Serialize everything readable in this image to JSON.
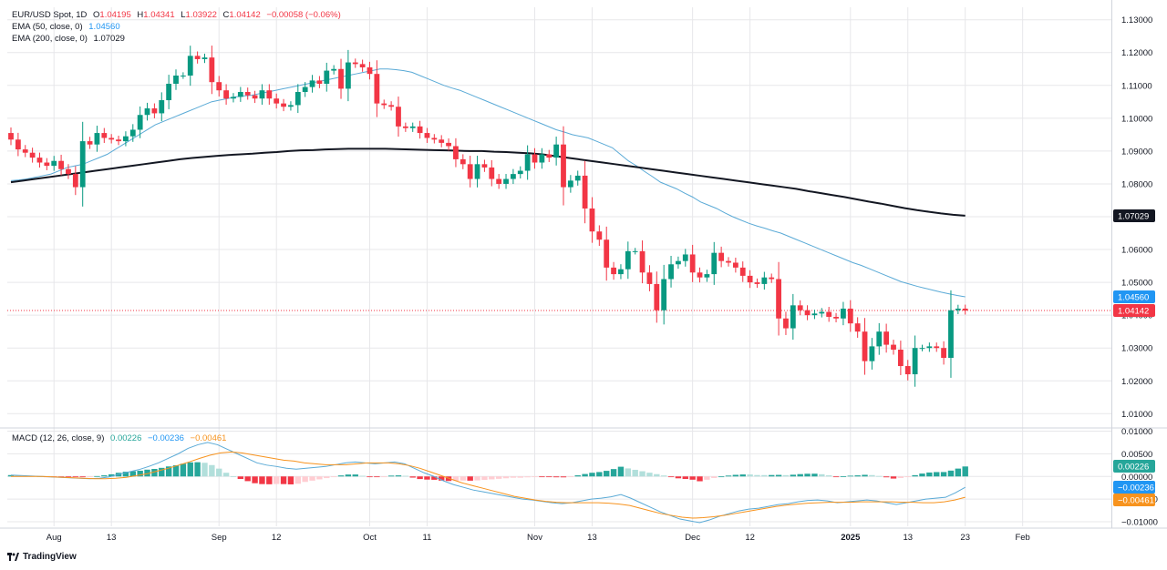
{
  "colors": {
    "up": "#089981",
    "down": "#f23645",
    "ema50": "#5aaad6",
    "ema200": "#131722",
    "macd_line": "#5aaad6",
    "signal_line": "#f7931e",
    "hist_up_strong": "#26a69a",
    "hist_up_weak": "#b2dfdb",
    "hist_down_strong": "#f23645",
    "hist_down_weak": "#ffcdd2",
    "grid": "#e7e7ea",
    "text": "#131722",
    "price_red": "#f23645"
  },
  "legend": {
    "row1": {
      "symbol": "EUR/USD Spot, 1D",
      "o_label": "O",
      "o": "1.04195",
      "h_label": "H",
      "h": "1.04341",
      "l_label": "L",
      "l": "1.03922",
      "c_label": "C",
      "c": "1.04142",
      "change": "−0.00058 (−0.06%)"
    },
    "row2": {
      "label": "EMA (50, close, 0)",
      "value": "1.04560"
    },
    "row3": {
      "label": "EMA (200, close, 0)",
      "value": "1.07029"
    },
    "macd": {
      "label": "MACD (12, 26, close, 9)",
      "hist": "0.00226",
      "macd": "−0.00236",
      "signal": "−0.00461"
    }
  },
  "branding": {
    "name": "TradingView"
  },
  "chart_data": {
    "type": "candlestick",
    "title": "EUR/USD Spot, 1D",
    "price_axis": {
      "ticks": [
        "1.13000",
        "1.12000",
        "1.11000",
        "1.10000",
        "1.09000",
        "1.08000",
        "1.07000",
        "1.06000",
        "1.05000",
        "1.04000",
        "1.03000",
        "1.02000",
        "1.01000"
      ],
      "range": [
        1.0062,
        1.1338
      ]
    },
    "macd_axis": {
      "ticks": [
        "0.01000",
        "0.00500",
        "0.00000",
        "−0.00500",
        "−0.01000"
      ],
      "range": [
        -0.011,
        0.0105
      ]
    },
    "x_axis": {
      "ticks": [
        {
          "label": "Aug",
          "idx": 6,
          "bold": false
        },
        {
          "label": "13",
          "idx": 14,
          "bold": false
        },
        {
          "label": "Sep",
          "idx": 29,
          "bold": false
        },
        {
          "label": "12",
          "idx": 37,
          "bold": false
        },
        {
          "label": "Oct",
          "idx": 50,
          "bold": false
        },
        {
          "label": "11",
          "idx": 58,
          "bold": false
        },
        {
          "label": "Nov",
          "idx": 73,
          "bold": false
        },
        {
          "label": "13",
          "idx": 81,
          "bold": false
        },
        {
          "label": "Dec",
          "idx": 95,
          "bold": false
        },
        {
          "label": "12",
          "idx": 103,
          "bold": false
        },
        {
          "label": "2025",
          "idx": 117,
          "bold": true
        },
        {
          "label": "13",
          "idx": 125,
          "bold": false
        },
        {
          "label": "23",
          "idx": 133,
          "bold": false
        },
        {
          "label": "Feb",
          "idx": 141,
          "bold": false
        }
      ]
    },
    "price_labels": [
      {
        "name": "EMA 200",
        "value": "1.07029",
        "price": 1.07029,
        "bg": "#131722"
      },
      {
        "name": "EMA 50",
        "value": "1.04560",
        "price": 1.0456,
        "bg": "#2196f3"
      },
      {
        "name": "Last",
        "value": "1.04142",
        "price": 1.04142,
        "bg": "#f23645"
      }
    ],
    "macd_labels": [
      {
        "name": "Histogram",
        "value": "0.00226",
        "v": 0.00226,
        "bg": "#26a69a"
      },
      {
        "name": "MACD",
        "value": "−0.00236",
        "v": -0.00236,
        "bg": "#2196f3"
      },
      {
        "name": "Signal",
        "value": "−0.00461",
        "v": -0.00461,
        "bg": "#f7931e"
      }
    ],
    "last_price": 1.04142,
    "closes": [
      1.0935,
      1.0905,
      1.0895,
      1.088,
      1.0865,
      1.0855,
      1.087,
      1.0845,
      1.083,
      1.079,
      1.093,
      1.092,
      1.0955,
      1.094,
      1.0935,
      1.093,
      1.0945,
      1.0965,
      1.101,
      1.103,
      1.1015,
      1.1055,
      1.1105,
      1.113,
      1.113,
      1.119,
      1.118,
      1.1185,
      1.111,
      1.1085,
      1.106,
      1.1065,
      1.108,
      1.107,
      1.106,
      1.1085,
      1.106,
      1.1045,
      1.1035,
      1.104,
      1.108,
      1.1095,
      1.1115,
      1.1105,
      1.1145,
      1.115,
      1.109,
      1.117,
      1.1165,
      1.1155,
      1.1135,
      1.1045,
      1.104,
      1.1035,
      1.0975,
      1.097,
      1.0975,
      1.0955,
      1.094,
      1.0935,
      1.0925,
      1.0915,
      1.0875,
      1.086,
      1.0815,
      1.086,
      1.085,
      1.0815,
      1.08,
      1.0815,
      1.083,
      1.084,
      1.089,
      1.0865,
      1.089,
      1.088,
      1.092,
      1.079,
      1.081,
      1.0825,
      1.0725,
      1.0655,
      1.063,
      1.0545,
      1.0525,
      1.054,
      1.0595,
      1.0595,
      1.053,
      1.0495,
      1.0415,
      1.051,
      1.0555,
      1.0565,
      1.0585,
      1.053,
      1.0515,
      1.0525,
      1.059,
      1.0565,
      1.056,
      1.0545,
      1.052,
      1.05,
      1.0495,
      1.0515,
      1.051,
      1.039,
      1.036,
      1.043,
      1.0415,
      1.04,
      1.0405,
      1.041,
      1.0395,
      1.039,
      1.042,
      1.0375,
      1.035,
      1.026,
      1.0305,
      1.035,
      1.031,
      1.0295,
      1.0245,
      1.022,
      1.03,
      1.03,
      1.0305,
      1.03,
      1.027,
      1.0415,
      1.042,
      1.0414
    ],
    "ema50": [
      1.081,
      1.0812,
      1.0815,
      1.082,
      1.0825,
      1.083,
      1.084,
      1.085,
      1.0855,
      1.086,
      1.087,
      1.088,
      1.089,
      1.0905,
      1.092,
      1.0935,
      1.095,
      1.0965,
      1.098,
      1.099,
      1.1,
      1.101,
      1.102,
      1.103,
      1.104,
      1.105,
      1.1055,
      1.106,
      1.1065,
      1.1068,
      1.107,
      1.1075,
      1.108,
      1.1085,
      1.109,
      1.1095,
      1.11,
      1.1105,
      1.111,
      1.1115,
      1.112,
      1.1125,
      1.113,
      1.1135,
      1.114,
      1.1145,
      1.115,
      1.115,
      1.1148,
      1.1145,
      1.114,
      1.113,
      1.112,
      1.111,
      1.11,
      1.1092,
      1.1085,
      1.1075,
      1.1065,
      1.1055,
      1.1045,
      1.1035,
      1.1025,
      1.1015,
      1.1005,
      1.0995,
      1.0985,
      1.0975,
      1.0965,
      1.0958,
      1.095,
      1.0945,
      1.094,
      1.093,
      1.092,
      1.091,
      1.089,
      1.087,
      1.0855,
      1.0838,
      1.0822,
      1.0805,
      1.0795,
      1.0785,
      1.0772,
      1.076,
      1.0745,
      1.0735,
      1.0725,
      1.0712,
      1.07,
      1.069,
      1.068,
      1.0672,
      1.0665,
      1.0657,
      1.065,
      1.064,
      1.063,
      1.062,
      1.061,
      1.06,
      1.059,
      1.058,
      1.057,
      1.056,
      1.0552,
      1.0542,
      1.0532,
      1.0522,
      1.0512,
      1.0502,
      1.0495,
      1.0488,
      1.0482,
      1.0476,
      1.047,
      1.0465,
      1.046,
      1.0456
    ],
    "ema50_start": 0,
    "ema200": [
      1.0805,
      1.081,
      1.0815,
      1.082,
      1.0825,
      1.083,
      1.0835,
      1.084,
      1.0845,
      1.085,
      1.0855,
      1.086,
      1.0865,
      1.087,
      1.0875,
      1.0879,
      1.0882,
      1.0885,
      1.0888,
      1.089,
      1.0892,
      1.0895,
      1.0897,
      1.09,
      1.0902,
      1.0903,
      1.0905,
      1.0906,
      1.0907,
      1.0907,
      1.0907,
      1.0907,
      1.0906,
      1.0905,
      1.0904,
      1.0903,
      1.0902,
      1.0901,
      1.09,
      1.09,
      1.0898,
      1.0897,
      1.0895,
      1.0893,
      1.089,
      1.0885,
      1.088,
      1.0875,
      1.087,
      1.0865,
      1.086,
      1.0855,
      1.085,
      1.0845,
      1.084,
      1.0835,
      1.083,
      1.0825,
      1.082,
      1.0815,
      1.081,
      1.0805,
      1.08,
      1.0795,
      1.079,
      1.0785,
      1.0778,
      1.0772,
      1.0766,
      1.076,
      1.0753,
      1.0746,
      1.074,
      1.0733,
      1.0726,
      1.072,
      1.0715,
      1.071,
      1.0706,
      1.0703
    ],
    "ema200_start": 0,
    "macd_line": [
      0.0003,
      0.0002,
      0.0001,
      0.0,
      -0.0001,
      -0.0002,
      -0.0003,
      -0.0004,
      -0.0005,
      -0.0004,
      -0.0001,
      0.0005,
      0.001,
      0.0015,
      0.0022,
      0.003,
      0.004,
      0.005,
      0.0062,
      0.007,
      0.0075,
      0.007,
      0.006,
      0.005,
      0.004,
      0.003,
      0.0025,
      0.0022,
      0.0018,
      0.0016,
      0.0018,
      0.002,
      0.0022,
      0.0026,
      0.003,
      0.0032,
      0.003,
      0.0028,
      0.003,
      0.0032,
      0.0028,
      0.0018,
      0.0008,
      0.0,
      -0.001,
      -0.0018,
      -0.0024,
      -0.003,
      -0.0034,
      -0.0038,
      -0.0042,
      -0.0046,
      -0.005,
      -0.0052,
      -0.0055,
      -0.0058,
      -0.006,
      -0.0058,
      -0.0054,
      -0.005,
      -0.0048,
      -0.0045,
      -0.004,
      -0.0048,
      -0.0058,
      -0.0068,
      -0.0078,
      -0.0086,
      -0.0094,
      -0.0098,
      -0.0102,
      -0.0096,
      -0.0088,
      -0.0082,
      -0.0076,
      -0.0072,
      -0.007,
      -0.0066,
      -0.0062,
      -0.006,
      -0.0056,
      -0.0053,
      -0.0052,
      -0.0054,
      -0.0058,
      -0.0056,
      -0.0054,
      -0.0052,
      -0.0054,
      -0.0058,
      -0.0062,
      -0.0058,
      -0.0054,
      -0.005,
      -0.0048,
      -0.0046,
      -0.0036,
      -0.0024
    ],
    "macd_line_start": 0,
    "signal_line": [
      0.0,
      0.0,
      0.0,
      0.0,
      -0.0001,
      -0.0002,
      -0.0003,
      -0.0004,
      -0.0005,
      -0.0005,
      -0.0004,
      -0.0002,
      0.0002,
      0.0006,
      0.0012,
      0.0018,
      0.0025,
      0.0032,
      0.004,
      0.0047,
      0.0052,
      0.0054,
      0.0052,
      0.0048,
      0.0044,
      0.004,
      0.0036,
      0.0034,
      0.003,
      0.0028,
      0.0026,
      0.0026,
      0.0026,
      0.0028,
      0.003,
      0.003,
      0.003,
      0.0028,
      0.0024,
      0.0018,
      0.001,
      0.0002,
      -0.0006,
      -0.0014,
      -0.002,
      -0.0026,
      -0.0032,
      -0.0038,
      -0.0044,
      -0.0048,
      -0.0052,
      -0.0055,
      -0.0057,
      -0.0058,
      -0.0058,
      -0.0058,
      -0.0058,
      -0.0059,
      -0.0061,
      -0.0064,
      -0.007,
      -0.0076,
      -0.0082,
      -0.0086,
      -0.009,
      -0.0092,
      -0.0091,
      -0.0089,
      -0.0086,
      -0.0082,
      -0.0078,
      -0.0074,
      -0.007,
      -0.0066,
      -0.0063,
      -0.0061,
      -0.0059,
      -0.0058,
      -0.0057,
      -0.0057,
      -0.0057,
      -0.0056,
      -0.0056,
      -0.0056,
      -0.0056,
      -0.0057,
      -0.0057,
      -0.0058,
      -0.0058,
      -0.0056,
      -0.0052,
      -0.0046
    ],
    "signal_line_start": 0
  }
}
